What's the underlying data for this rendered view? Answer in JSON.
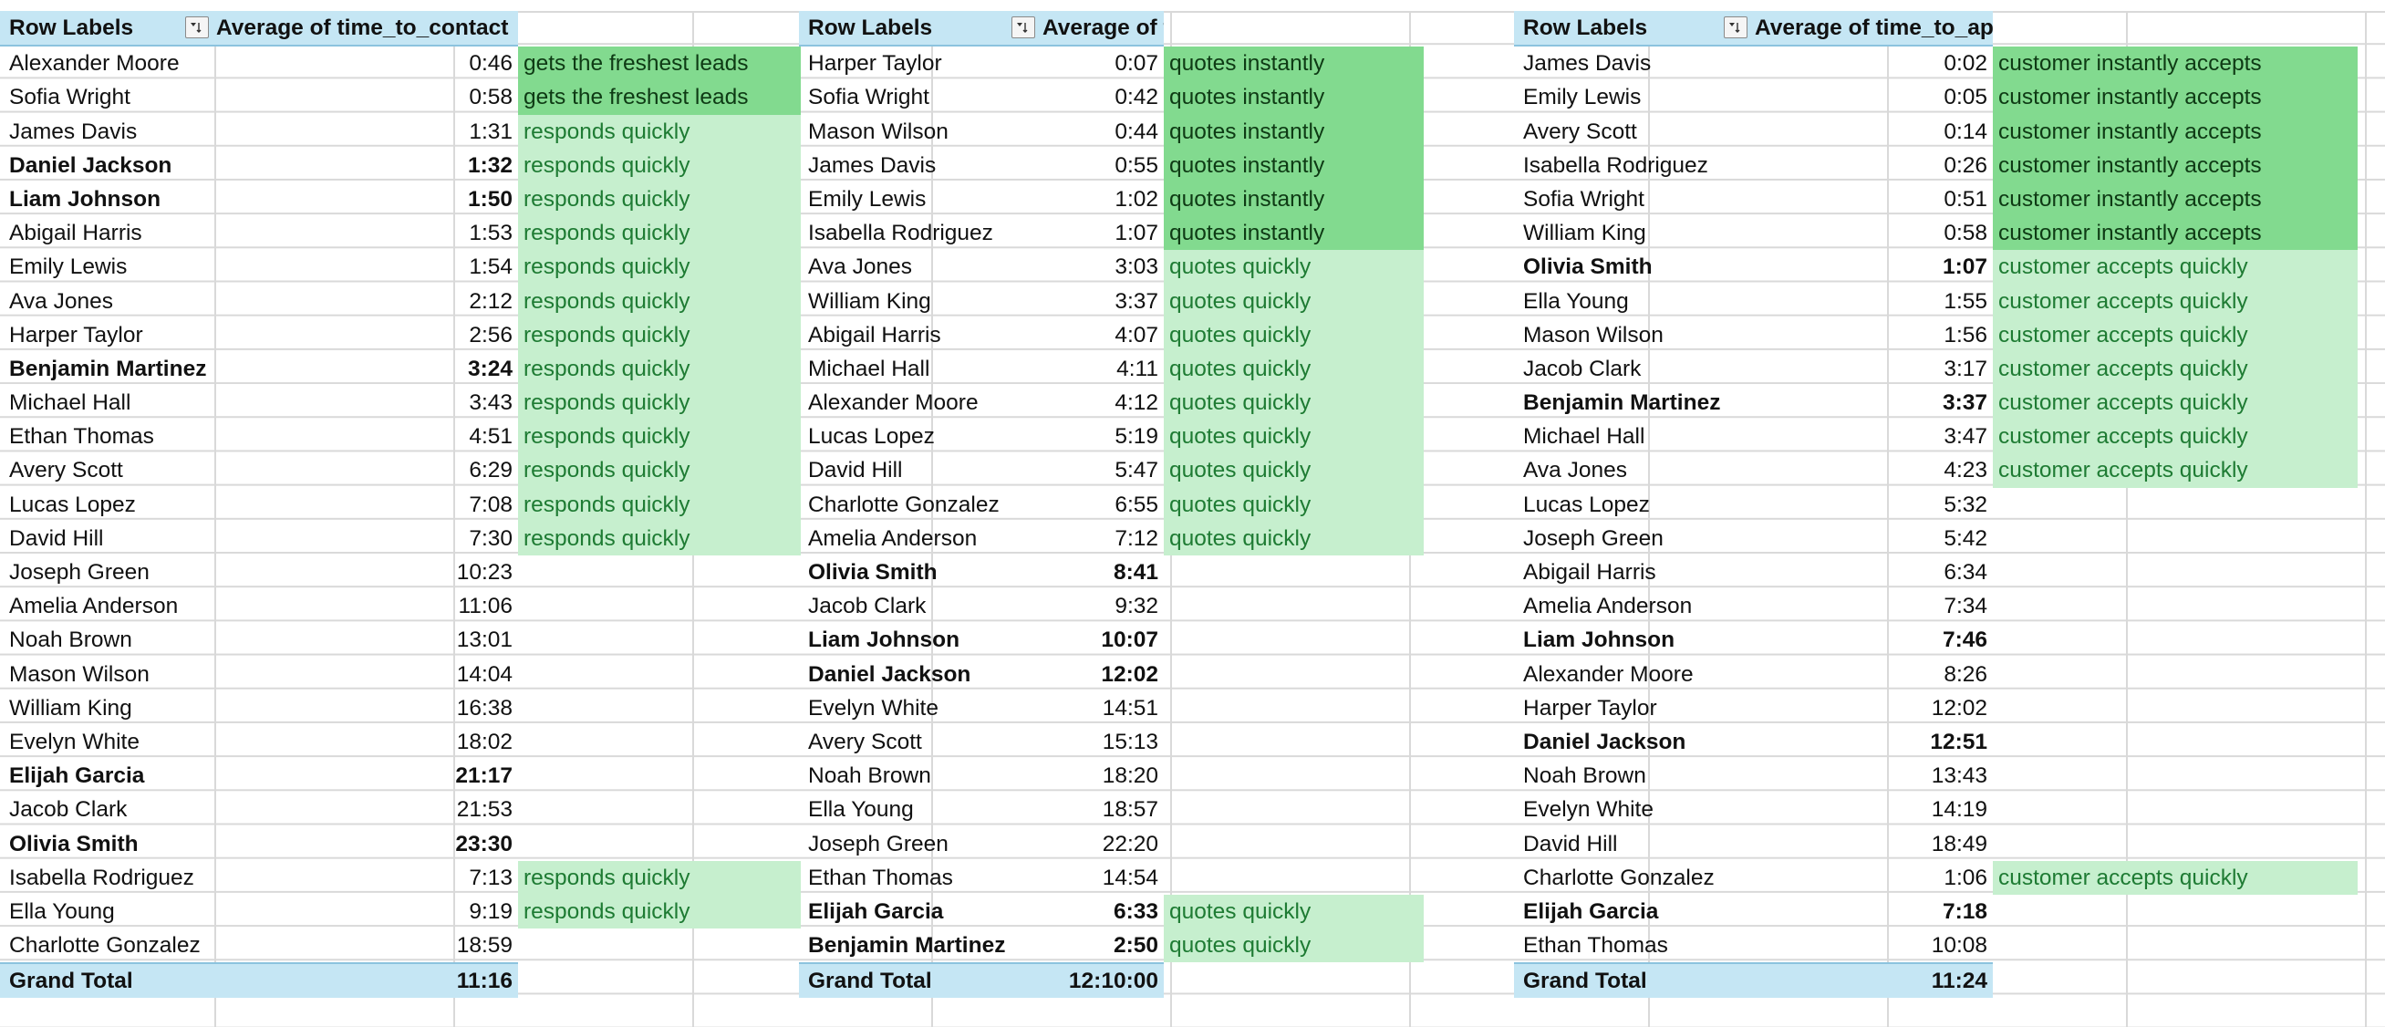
{
  "pivots": [
    {
      "row_label_header": "Row Labels",
      "value_header": "Average of time_to_contact",
      "rows": [
        {
          "name": "Alexander Moore",
          "time": "0:46",
          "note": "gets the freshest leads",
          "shade": "dark",
          "bold": false
        },
        {
          "name": "Sofia Wright",
          "time": "0:58",
          "note": "gets the freshest leads",
          "shade": "dark",
          "bold": false
        },
        {
          "name": "James Davis",
          "time": "1:31",
          "note": "responds quickly",
          "shade": "light",
          "bold": false
        },
        {
          "name": "Daniel Jackson",
          "time": "1:32",
          "note": "responds quickly",
          "shade": "light",
          "bold": true
        },
        {
          "name": "Liam Johnson",
          "time": "1:50",
          "note": "responds quickly",
          "shade": "light",
          "bold": true
        },
        {
          "name": "Abigail Harris",
          "time": "1:53",
          "note": "responds quickly",
          "shade": "light",
          "bold": false
        },
        {
          "name": "Emily Lewis",
          "time": "1:54",
          "note": "responds quickly",
          "shade": "light",
          "bold": false
        },
        {
          "name": "Ava Jones",
          "time": "2:12",
          "note": "responds quickly",
          "shade": "light",
          "bold": false
        },
        {
          "name": "Harper Taylor",
          "time": "2:56",
          "note": "responds quickly",
          "shade": "light",
          "bold": false
        },
        {
          "name": "Benjamin Martinez",
          "time": "3:24",
          "note": "responds quickly",
          "shade": "light",
          "bold": true
        },
        {
          "name": "Michael Hall",
          "time": "3:43",
          "note": "responds quickly",
          "shade": "light",
          "bold": false
        },
        {
          "name": "Ethan Thomas",
          "time": "4:51",
          "note": "responds quickly",
          "shade": "light",
          "bold": false
        },
        {
          "name": "Avery Scott",
          "time": "6:29",
          "note": "responds quickly",
          "shade": "light",
          "bold": false
        },
        {
          "name": "Lucas Lopez",
          "time": "7:08",
          "note": "responds quickly",
          "shade": "light",
          "bold": false
        },
        {
          "name": "David Hill",
          "time": "7:30",
          "note": "responds quickly",
          "shade": "light",
          "bold": false
        },
        {
          "name": "Joseph Green",
          "time": "10:23",
          "note": "",
          "shade": "none",
          "bold": false
        },
        {
          "name": "Amelia Anderson",
          "time": "11:06",
          "note": "",
          "shade": "none",
          "bold": false
        },
        {
          "name": "Noah Brown",
          "time": "13:01",
          "note": "",
          "shade": "none",
          "bold": false
        },
        {
          "name": "Mason Wilson",
          "time": "14:04",
          "note": "",
          "shade": "none",
          "bold": false
        },
        {
          "name": "William King",
          "time": "16:38",
          "note": "",
          "shade": "none",
          "bold": false
        },
        {
          "name": "Evelyn White",
          "time": "18:02",
          "note": "",
          "shade": "none",
          "bold": false
        },
        {
          "name": "Elijah Garcia",
          "time": "21:17",
          "note": "",
          "shade": "none",
          "bold": true
        },
        {
          "name": "Jacob Clark",
          "time": "21:53",
          "note": "",
          "shade": "none",
          "bold": false
        },
        {
          "name": "Olivia Smith",
          "time": "23:30",
          "note": "",
          "shade": "none",
          "bold": true
        },
        {
          "name": "Isabella Rodriguez",
          "time": "7:13",
          "note": "responds quickly",
          "shade": "light",
          "bold": false
        },
        {
          "name": "Ella Young",
          "time": "9:19",
          "note": "responds quickly",
          "shade": "light",
          "bold": false
        },
        {
          "name": "Charlotte Gonzalez",
          "time": "18:59",
          "note": "",
          "shade": "none",
          "bold": false
        }
      ],
      "grand_total_label": "Grand Total",
      "grand_total_value": "11:16"
    },
    {
      "row_label_header": "Row Labels",
      "value_header": "Average of time_to_quote",
      "rows": [
        {
          "name": "Harper Taylor",
          "time": "0:07",
          "note": "quotes instantly",
          "shade": "dark",
          "bold": false
        },
        {
          "name": "Sofia Wright",
          "time": "0:42",
          "note": "quotes instantly",
          "shade": "dark",
          "bold": false
        },
        {
          "name": "Mason Wilson",
          "time": "0:44",
          "note": "quotes instantly",
          "shade": "dark",
          "bold": false
        },
        {
          "name": "James Davis",
          "time": "0:55",
          "note": "quotes instantly",
          "shade": "dark",
          "bold": false
        },
        {
          "name": "Emily Lewis",
          "time": "1:02",
          "note": "quotes instantly",
          "shade": "dark",
          "bold": false
        },
        {
          "name": "Isabella Rodriguez",
          "time": "1:07",
          "note": "quotes instantly",
          "shade": "dark",
          "bold": false
        },
        {
          "name": "Ava Jones",
          "time": "3:03",
          "note": "quotes quickly",
          "shade": "light",
          "bold": false
        },
        {
          "name": "William King",
          "time": "3:37",
          "note": "quotes quickly",
          "shade": "light",
          "bold": false
        },
        {
          "name": "Abigail Harris",
          "time": "4:07",
          "note": "quotes quickly",
          "shade": "light",
          "bold": false
        },
        {
          "name": "Michael Hall",
          "time": "4:11",
          "note": "quotes quickly",
          "shade": "light",
          "bold": false
        },
        {
          "name": "Alexander Moore",
          "time": "4:12",
          "note": "quotes quickly",
          "shade": "light",
          "bold": false
        },
        {
          "name": "Lucas Lopez",
          "time": "5:19",
          "note": "quotes quickly",
          "shade": "light",
          "bold": false
        },
        {
          "name": "David Hill",
          "time": "5:47",
          "note": "quotes quickly",
          "shade": "light",
          "bold": false
        },
        {
          "name": "Charlotte Gonzalez",
          "time": "6:55",
          "note": "quotes quickly",
          "shade": "light",
          "bold": false
        },
        {
          "name": "Amelia Anderson",
          "time": "7:12",
          "note": "quotes quickly",
          "shade": "light",
          "bold": false
        },
        {
          "name": "Olivia Smith",
          "time": "8:41",
          "note": "",
          "shade": "none",
          "bold": true
        },
        {
          "name": "Jacob Clark",
          "time": "9:32",
          "note": "",
          "shade": "none",
          "bold": false
        },
        {
          "name": "Liam Johnson",
          "time": "10:07",
          "note": "",
          "shade": "none",
          "bold": true
        },
        {
          "name": "Daniel Jackson",
          "time": "12:02",
          "note": "",
          "shade": "none",
          "bold": true
        },
        {
          "name": "Evelyn White",
          "time": "14:51",
          "note": "",
          "shade": "none",
          "bold": false
        },
        {
          "name": "Avery Scott",
          "time": "15:13",
          "note": "",
          "shade": "none",
          "bold": false
        },
        {
          "name": "Noah Brown",
          "time": "18:20",
          "note": "",
          "shade": "none",
          "bold": false
        },
        {
          "name": "Ella Young",
          "time": "18:57",
          "note": "",
          "shade": "none",
          "bold": false
        },
        {
          "name": "Joseph Green",
          "time": "22:20",
          "note": "",
          "shade": "none",
          "bold": false
        },
        {
          "name": "Ethan Thomas",
          "time": "14:54",
          "note": "",
          "shade": "none",
          "bold": false
        },
        {
          "name": "Elijah Garcia",
          "time": "6:33",
          "note": "quotes quickly",
          "shade": "light",
          "bold": true
        },
        {
          "name": "Benjamin Martinez",
          "time": "2:50",
          "note": "quotes quickly",
          "shade": "light",
          "bold": true
        }
      ],
      "grand_total_label": "Grand Total",
      "grand_total_value": "12:10:00"
    },
    {
      "row_label_header": "Row Labels",
      "value_header": "Average of time_to_app",
      "rows": [
        {
          "name": "James Davis",
          "time": "0:02",
          "note": "customer instantly accepts",
          "shade": "dark",
          "bold": false
        },
        {
          "name": "Emily Lewis",
          "time": "0:05",
          "note": "customer instantly accepts",
          "shade": "dark",
          "bold": false
        },
        {
          "name": "Avery Scott",
          "time": "0:14",
          "note": "customer instantly accepts",
          "shade": "dark",
          "bold": false
        },
        {
          "name": "Isabella Rodriguez",
          "time": "0:26",
          "note": "customer instantly accepts",
          "shade": "dark",
          "bold": false
        },
        {
          "name": "Sofia Wright",
          "time": "0:51",
          "note": "customer instantly accepts",
          "shade": "dark",
          "bold": false
        },
        {
          "name": "William King",
          "time": "0:58",
          "note": "customer instantly accepts",
          "shade": "dark",
          "bold": false
        },
        {
          "name": "Olivia Smith",
          "time": "1:07",
          "note": "customer accepts quickly",
          "shade": "light",
          "bold": true
        },
        {
          "name": "Ella Young",
          "time": "1:55",
          "note": "customer accepts quickly",
          "shade": "light",
          "bold": false
        },
        {
          "name": "Mason Wilson",
          "time": "1:56",
          "note": "customer accepts quickly",
          "shade": "light",
          "bold": false
        },
        {
          "name": "Jacob Clark",
          "time": "3:17",
          "note": "customer accepts quickly",
          "shade": "light",
          "bold": false
        },
        {
          "name": "Benjamin Martinez",
          "time": "3:37",
          "note": "customer accepts quickly",
          "shade": "light",
          "bold": true
        },
        {
          "name": "Michael Hall",
          "time": "3:47",
          "note": "customer accepts quickly",
          "shade": "light",
          "bold": false
        },
        {
          "name": "Ava Jones",
          "time": "4:23",
          "note": "customer accepts quickly",
          "shade": "light",
          "bold": false
        },
        {
          "name": "Lucas Lopez",
          "time": "5:32",
          "note": "",
          "shade": "none",
          "bold": false
        },
        {
          "name": "Joseph Green",
          "time": "5:42",
          "note": "",
          "shade": "none",
          "bold": false
        },
        {
          "name": "Abigail Harris",
          "time": "6:34",
          "note": "",
          "shade": "none",
          "bold": false
        },
        {
          "name": "Amelia Anderson",
          "time": "7:34",
          "note": "",
          "shade": "none",
          "bold": false
        },
        {
          "name": "Liam Johnson",
          "time": "7:46",
          "note": "",
          "shade": "none",
          "bold": true
        },
        {
          "name": "Alexander Moore",
          "time": "8:26",
          "note": "",
          "shade": "none",
          "bold": false
        },
        {
          "name": "Harper Taylor",
          "time": "12:02",
          "note": "",
          "shade": "none",
          "bold": false
        },
        {
          "name": "Daniel Jackson",
          "time": "12:51",
          "note": "",
          "shade": "none",
          "bold": true
        },
        {
          "name": "Noah Brown",
          "time": "13:43",
          "note": "",
          "shade": "none",
          "bold": false
        },
        {
          "name": "Evelyn White",
          "time": "14:19",
          "note": "",
          "shade": "none",
          "bold": false
        },
        {
          "name": "David Hill",
          "time": "18:49",
          "note": "",
          "shade": "none",
          "bold": false
        },
        {
          "name": "Charlotte Gonzalez",
          "time": "1:06",
          "note": "customer accepts quickly",
          "shade": "light",
          "bold": false
        },
        {
          "name": "Elijah Garcia",
          "time": "7:18",
          "note": "",
          "shade": "none",
          "bold": true
        },
        {
          "name": "Ethan Thomas",
          "time": "10:08",
          "note": "",
          "shade": "none",
          "bold": false
        }
      ],
      "grand_total_label": "Grand Total",
      "grand_total_value": "11:24"
    }
  ],
  "icons": {
    "filter": "filter-sort-dropdown-icon"
  },
  "colors": {
    "header_fill": "#c5e6f4",
    "dark_green_fill": "#82da8f",
    "light_green_fill": "#c6efce",
    "light_green_text": "#1e7b33"
  }
}
